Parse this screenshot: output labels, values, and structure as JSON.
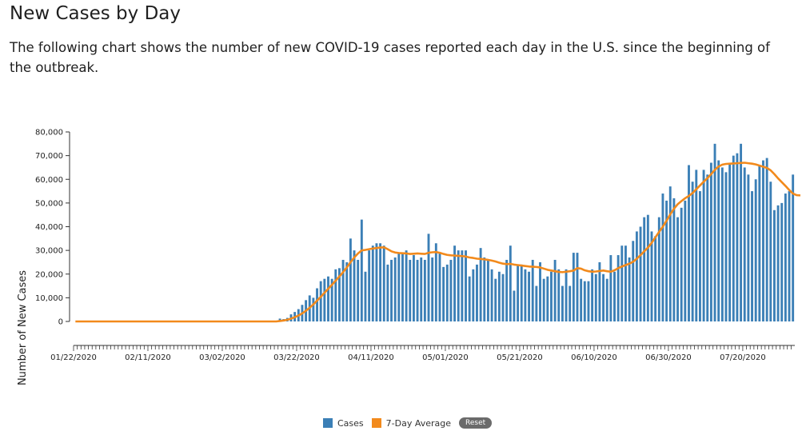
{
  "page": {
    "title": "New Cases by Day",
    "description": "The following chart shows the number of new COVID-19 cases reported each day in the U.S. since the beginning of the outbreak."
  },
  "legend": {
    "cases_label": "Cases",
    "avg_label": "7-Day Average",
    "reset_label": "Reset"
  },
  "colors": {
    "bar": "#3b7fb6",
    "line": "#f28a1c"
  },
  "chart_data": {
    "type": "bar",
    "title": "",
    "xlabel": "",
    "ylabel": "Number of New Cases",
    "ylim": [
      0,
      80000
    ],
    "yticks": [
      0,
      10000,
      20000,
      30000,
      40000,
      50000,
      60000,
      70000,
      80000
    ],
    "ytick_labels": [
      "0",
      "10,000",
      "20,000",
      "30,000",
      "40,000",
      "50,000",
      "60,000",
      "70,000",
      "80,000"
    ],
    "xtick_labels": [
      "01/22/2020",
      "02/11/2020",
      "03/02/2020",
      "03/22/2020",
      "04/11/2020",
      "05/01/2020",
      "05/21/2020",
      "06/10/2020",
      "06/30/2020",
      "07/20/2020"
    ],
    "start_date": "01/22/2020",
    "grid": false,
    "legend_position": "bottom",
    "series": [
      {
        "name": "Cases",
        "type": "bar",
        "values": [
          0,
          0,
          0,
          0,
          0,
          0,
          0,
          0,
          0,
          0,
          0,
          0,
          0,
          0,
          0,
          0,
          0,
          0,
          0,
          0,
          0,
          0,
          0,
          0,
          0,
          0,
          0,
          0,
          0,
          0,
          0,
          0,
          0,
          0,
          0,
          0,
          0,
          0,
          0,
          0,
          0,
          0,
          0,
          0,
          0,
          0,
          0,
          0,
          0,
          0,
          0,
          0,
          0,
          0,
          0,
          1200,
          1000,
          1500,
          3000,
          4000,
          5200,
          7000,
          9000,
          11000,
          10000,
          14000,
          17000,
          18000,
          19000,
          18000,
          22000,
          22500,
          26000,
          25000,
          35000,
          30000,
          26000,
          43000,
          21000,
          30000,
          32000,
          33000,
          33000,
          32000,
          24000,
          26000,
          27000,
          29000,
          29000,
          30000,
          26000,
          28000,
          26000,
          27000,
          26000,
          37000,
          27000,
          33000,
          29000,
          23000,
          24000,
          26000,
          32000,
          30000,
          30000,
          30000,
          19000,
          22000,
          24000,
          31000,
          27000,
          26000,
          22000,
          18000,
          21000,
          20000,
          26000,
          32000,
          13000,
          24000,
          24000,
          22000,
          21000,
          26000,
          15000,
          25000,
          18000,
          19000,
          21000,
          26000,
          22000,
          15000,
          22000,
          15000,
          29000,
          29000,
          18000,
          17000,
          17000,
          22000,
          20000,
          25000,
          20000,
          18000,
          28000,
          21000,
          28000,
          32000,
          32000,
          27000,
          34000,
          38000,
          40000,
          44000,
          45000,
          38000,
          36000,
          44000,
          54000,
          51000,
          57000,
          52000,
          44000,
          48000,
          51000,
          66000,
          59000,
          64000,
          55000,
          64000,
          62000,
          67000,
          75000,
          68000,
          65000,
          63000,
          67000,
          70000,
          71000,
          75000,
          65000,
          62000,
          55000,
          60000,
          66000,
          68000,
          69000,
          59000,
          47000,
          49000,
          50000,
          54000,
          55000,
          62000
        ]
      },
      {
        "name": "7-Day Average",
        "type": "line",
        "values": [
          0,
          0,
          0,
          0,
          0,
          0,
          0,
          0,
          0,
          0,
          0,
          0,
          0,
          0,
          0,
          0,
          0,
          0,
          0,
          0,
          0,
          0,
          0,
          0,
          0,
          0,
          0,
          0,
          0,
          0,
          0,
          0,
          0,
          0,
          0,
          0,
          0,
          0,
          0,
          0,
          0,
          0,
          0,
          0,
          0,
          0,
          0,
          0,
          0,
          0,
          0,
          0,
          0,
          0,
          0,
          200,
          400,
          700,
          1200,
          1800,
          2500,
          3400,
          4500,
          5800,
          7200,
          8800,
          10400,
          12100,
          13800,
          15500,
          17200,
          19000,
          20800,
          22800,
          25000,
          27000,
          28700,
          30000,
          30200,
          30500,
          30800,
          31000,
          31200,
          31300,
          30500,
          29600,
          29100,
          28900,
          28800,
          28700,
          28500,
          28600,
          28700,
          28600,
          28500,
          29000,
          29200,
          29300,
          29000,
          28500,
          28100,
          27900,
          27800,
          27700,
          27600,
          27400,
          27000,
          26800,
          26500,
          26400,
          26200,
          26000,
          25700,
          25300,
          24800,
          24400,
          24200,
          24300,
          24000,
          23800,
          23600,
          23400,
          23200,
          23100,
          23000,
          22800,
          22300,
          21800,
          21500,
          21200,
          20900,
          20800,
          21000,
          21200,
          21500,
          22500,
          22300,
          21600,
          21200,
          21000,
          21100,
          21300,
          21500,
          21200,
          21000,
          21600,
          22500,
          23200,
          23800,
          24400,
          25200,
          26500,
          28000,
          29600,
          31200,
          33200,
          35500,
          37800,
          40000,
          42500,
          45200,
          47600,
          49500,
          50800,
          52000,
          53000,
          54200,
          55800,
          57400,
          59000,
          60500,
          62200,
          64000,
          65400,
          66200,
          66500,
          66600,
          66700,
          66800,
          66900,
          67000,
          66800,
          66600,
          66300,
          65800,
          65300,
          64800,
          63800,
          62200,
          60400,
          58800,
          57200,
          55500,
          54000,
          53300,
          53200
        ]
      }
    ]
  }
}
